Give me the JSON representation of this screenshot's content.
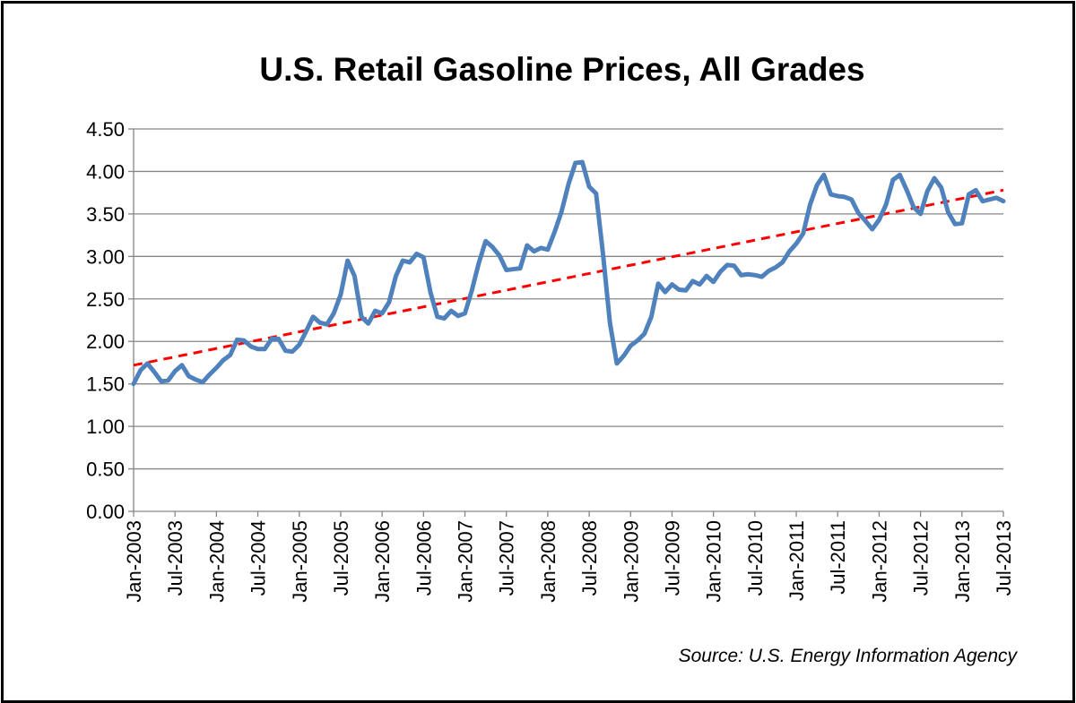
{
  "chart_data": {
    "type": "line",
    "title": "U.S. Retail Gasoline Prices, All Grades",
    "source": "Source: U.S. Energy Information Agency",
    "ylim": [
      0,
      4.5
    ],
    "y_ticks": [
      "0.00",
      "0.50",
      "1.00",
      "1.50",
      "2.00",
      "2.50",
      "3.00",
      "3.50",
      "4.00",
      "4.50"
    ],
    "x_tick_labels": [
      "Jan-2003",
      "Jul-2003",
      "Jan-2004",
      "Jul-2004",
      "Jan-2005",
      "Jul-2005",
      "Jan-2006",
      "Jul-2006",
      "Jan-2007",
      "Jul-2007",
      "Jan-2008",
      "Jul-2008",
      "Jan-2009",
      "Jul-2009",
      "Jan-2010",
      "Jul-2010",
      "Jan-2011",
      "Jul-2011",
      "Jan-2012",
      "Jul-2012",
      "Jan-2013",
      "Jul-2013"
    ],
    "x_start": "Jan-2003",
    "x_end": "Aug-2013",
    "grid": "horizontal",
    "series": [
      {
        "color": "#4f81bd",
        "style": "solid",
        "values": [
          1.5,
          1.66,
          1.74,
          1.64,
          1.53,
          1.54,
          1.65,
          1.72,
          1.59,
          1.55,
          1.52,
          1.61,
          1.69,
          1.78,
          1.84,
          2.02,
          2.01,
          1.94,
          1.91,
          1.91,
          2.03,
          2.03,
          1.89,
          1.88,
          1.96,
          2.12,
          2.29,
          2.22,
          2.2,
          2.33,
          2.55,
          2.95,
          2.77,
          2.29,
          2.21,
          2.36,
          2.33,
          2.46,
          2.77,
          2.95,
          2.93,
          3.03,
          2.99,
          2.58,
          2.29,
          2.27,
          2.36,
          2.3,
          2.33,
          2.6,
          2.92,
          3.18,
          3.11,
          3.01,
          2.84,
          2.85,
          2.86,
          3.13,
          3.06,
          3.1,
          3.08,
          3.29,
          3.53,
          3.85,
          4.1,
          4.11,
          3.82,
          3.74,
          3.03,
          2.22,
          1.74,
          1.83,
          1.95,
          2.01,
          2.09,
          2.29,
          2.68,
          2.58,
          2.67,
          2.61,
          2.6,
          2.71,
          2.67,
          2.77,
          2.7,
          2.82,
          2.9,
          2.89,
          2.78,
          2.79,
          2.78,
          2.76,
          2.83,
          2.87,
          2.93,
          3.06,
          3.15,
          3.27,
          3.61,
          3.84,
          3.96,
          3.73,
          3.71,
          3.7,
          3.67,
          3.51,
          3.42,
          3.32,
          3.43,
          3.61,
          3.9,
          3.96,
          3.78,
          3.58,
          3.5,
          3.77,
          3.92,
          3.81,
          3.52,
          3.38,
          3.39,
          3.73,
          3.78,
          3.65,
          3.67,
          3.69,
          3.65
        ]
      },
      {
        "color": "#ff0000",
        "style": "dashed",
        "type": "linear-trend",
        "values": [
          1.72,
          3.78
        ]
      }
    ]
  }
}
